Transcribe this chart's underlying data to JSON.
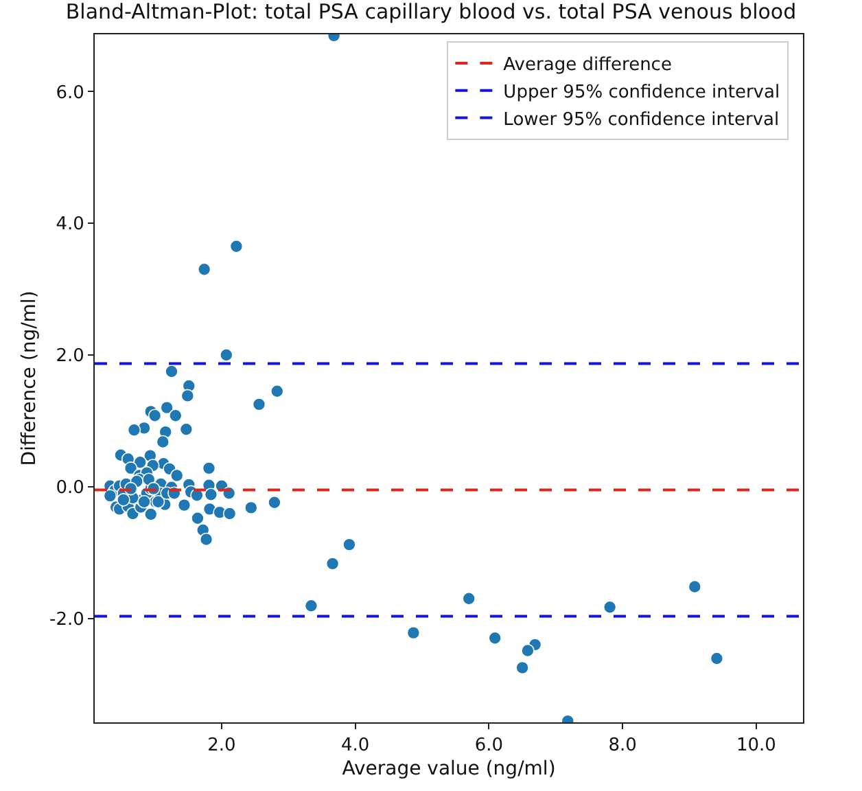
{
  "chart_data": {
    "type": "scatter",
    "title": "Bland-Altman-Plot: total PSA capillary blood vs. total PSA venous blood",
    "xlabel": "Average value (ng/ml)",
    "ylabel": "Difference (ng/ml)",
    "x": [
      3.68,
      2.22,
      1.74,
      2.07,
      1.25,
      1.51,
      1.49,
      2.83,
      2.56,
      0.94,
      1.18,
      1.0,
      1.31,
      0.84,
      0.69,
      1.16,
      1.47,
      1.12,
      0.49,
      0.6,
      0.93,
      0.78,
      1.13,
      0.97,
      1.22,
      0.64,
      1.81,
      1.33,
      0.77,
      0.88,
      1.09,
      1.51,
      1.81,
      2.0,
      1.25,
      1.54,
      2.11,
      1.84,
      1.63,
      1.44,
      2.79,
      2.44,
      1.82,
      1.97,
      2.12,
      1.64,
      1.72,
      1.77,
      3.66,
      3.91,
      3.34,
      4.87,
      0.33,
      0.4,
      0.47,
      0.53,
      0.33,
      0.42,
      0.47,
      0.6,
      0.67,
      0.79,
      0.81,
      0.94,
      1.01,
      1.08,
      0.88,
      0.67,
      0.57,
      0.77,
      0.94,
      1.15,
      0.73,
      0.64,
      0.53,
      0.84,
      1.05,
      0.91,
      0.98,
      1.18,
      1.29,
      5.7,
      7.81,
      9.08,
      6.09,
      6.69,
      6.58,
      6.5,
      9.41,
      7.18
    ],
    "values": [
      6.85,
      3.65,
      3.3,
      2.0,
      1.75,
      1.53,
      1.38,
      1.45,
      1.25,
      1.14,
      1.2,
      1.08,
      1.08,
      0.89,
      0.86,
      0.83,
      0.87,
      0.68,
      0.48,
      0.42,
      0.47,
      0.37,
      0.35,
      0.32,
      0.27,
      0.28,
      0.28,
      0.17,
      0.17,
      0.21,
      0.04,
      0.03,
      0.02,
      0.01,
      -0.01,
      -0.08,
      -0.1,
      -0.12,
      -0.13,
      -0.28,
      -0.24,
      -0.32,
      -0.34,
      -0.39,
      -0.41,
      -0.48,
      -0.66,
      -0.8,
      -1.17,
      -0.88,
      -1.81,
      -2.22,
      0.01,
      -0.06,
      0.01,
      -0.1,
      -0.14,
      -0.31,
      -0.34,
      -0.3,
      -0.41,
      -0.31,
      -0.2,
      -0.42,
      -0.23,
      -0.1,
      -0.1,
      -0.17,
      0.04,
      0.11,
      -0.03,
      -0.27,
      0.08,
      -0.03,
      -0.2,
      -0.23,
      -0.23,
      0.11,
      -0.03,
      -0.1,
      -0.1,
      -1.7,
      -1.83,
      -1.52,
      -2.3,
      -2.4,
      -2.49,
      -2.75,
      -2.61,
      -3.56
    ],
    "color": "#1f77b4",
    "marker": "circle",
    "xlim": [
      0.1,
      10.7
    ],
    "ylim": [
      -3.58,
      6.87
    ],
    "xticks": [
      {
        "value": 2,
        "label": "2.0"
      },
      {
        "value": 4,
        "label": "4.0"
      },
      {
        "value": 6,
        "label": "6.0"
      },
      {
        "value": 8,
        "label": "8.0"
      },
      {
        "value": 10,
        "label": "10.0"
      }
    ],
    "yticks": [
      {
        "value": -2,
        "label": "-2.0"
      },
      {
        "value": 0,
        "label": "0.0"
      },
      {
        "value": 2,
        "label": "2.0"
      },
      {
        "value": 4,
        "label": "4.0"
      },
      {
        "value": 6,
        "label": "6.0"
      }
    ],
    "ref_lines": [
      {
        "axis": "y",
        "value": -0.05,
        "label": "Average difference",
        "color": "#e3241b",
        "line_style": "dashed"
      },
      {
        "axis": "y",
        "value": 1.87,
        "label": "Upper 95% confidence interval",
        "color": "#1414e0",
        "line_style": "dashed"
      },
      {
        "axis": "y",
        "value": -1.97,
        "label": "Lower 95% confidence interval",
        "color": "#1414e0",
        "line_style": "dashed"
      }
    ],
    "grid": false,
    "legend": "top right"
  }
}
